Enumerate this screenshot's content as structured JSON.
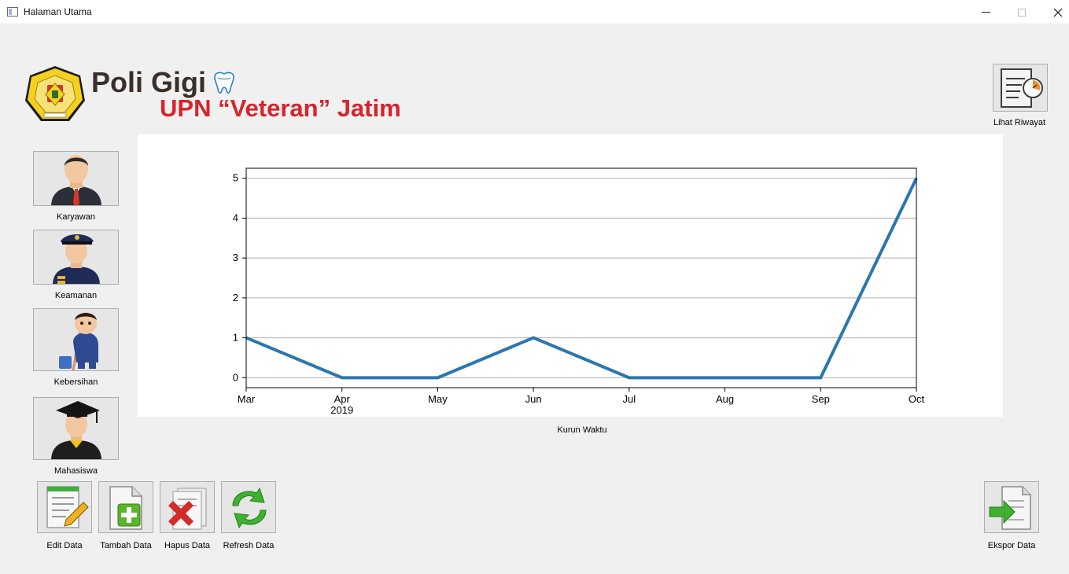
{
  "window": {
    "title": "Halaman Utama"
  },
  "header": {
    "title": "Poli Gigi",
    "subtitle": "UPN “Veteran” Jatim"
  },
  "sidebar": [
    {
      "label": "Karyawan"
    },
    {
      "label": "Keamanan"
    },
    {
      "label": "Kebersihan"
    },
    {
      "label": "Mahasiswa"
    }
  ],
  "toolbar": {
    "history": "Lihat Riwayat",
    "edit": "Edit Data",
    "add": "Tambah Data",
    "delete": "Hapus Data",
    "refresh": "Refresh Data",
    "export": "Ekspor Data"
  },
  "chart_caption": "Kurun Waktu",
  "chart_data": {
    "type": "line",
    "x": [
      "Mar",
      "Apr",
      "May",
      "Jun",
      "Jul",
      "Aug",
      "Sep",
      "Oct"
    ],
    "x_sublabel": {
      "Apr": "2019"
    },
    "series": [
      {
        "values": [
          1,
          0,
          0,
          1,
          0,
          0,
          0,
          5
        ],
        "color": "#2b77ad"
      }
    ],
    "y_ticks": [
      0,
      1,
      2,
      3,
      4,
      5
    ],
    "ylim": [
      -0.25,
      5.25
    ],
    "grid": "horizontal",
    "title": "",
    "xlabel": "",
    "ylabel": ""
  }
}
